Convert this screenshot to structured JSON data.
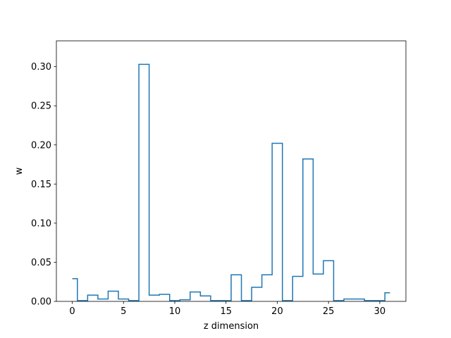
{
  "chart_data": {
    "type": "step",
    "title": "",
    "xlabel": "z dimension",
    "ylabel": "w",
    "xlim": [
      -1.55,
      32.55
    ],
    "ylim": [
      0,
      0.333
    ],
    "x_ticks": [
      0,
      5,
      10,
      15,
      20,
      25,
      30
    ],
    "y_ticks": [
      0.0,
      0.05,
      0.1,
      0.15,
      0.2,
      0.25,
      0.3
    ],
    "x_tick_labels": [
      "0",
      "5",
      "10",
      "15",
      "20",
      "25",
      "30"
    ],
    "y_tick_labels": [
      "0.00",
      "0.05",
      "0.10",
      "0.15",
      "0.20",
      "0.25",
      "0.30"
    ],
    "line_color": "#1f77b4",
    "grid": false,
    "series": [
      {
        "x": [
          0,
          1,
          2,
          3,
          4,
          5,
          6,
          7,
          8,
          9,
          10,
          11,
          12,
          13,
          14,
          15,
          16,
          17,
          18,
          19,
          20,
          21,
          22,
          23,
          24,
          25,
          26,
          27,
          28,
          29,
          30,
          31
        ],
        "values": [
          0.029,
          0.001,
          0.008,
          0.003,
          0.013,
          0.003,
          0.001,
          0.303,
          0.008,
          0.009,
          0.001,
          0.002,
          0.012,
          0.007,
          0.001,
          0.001,
          0.034,
          0.001,
          0.018,
          0.034,
          0.202,
          0.001,
          0.032,
          0.182,
          0.035,
          0.052,
          0.001,
          0.003,
          0.003,
          0.001,
          0.001,
          0.011
        ]
      }
    ]
  }
}
